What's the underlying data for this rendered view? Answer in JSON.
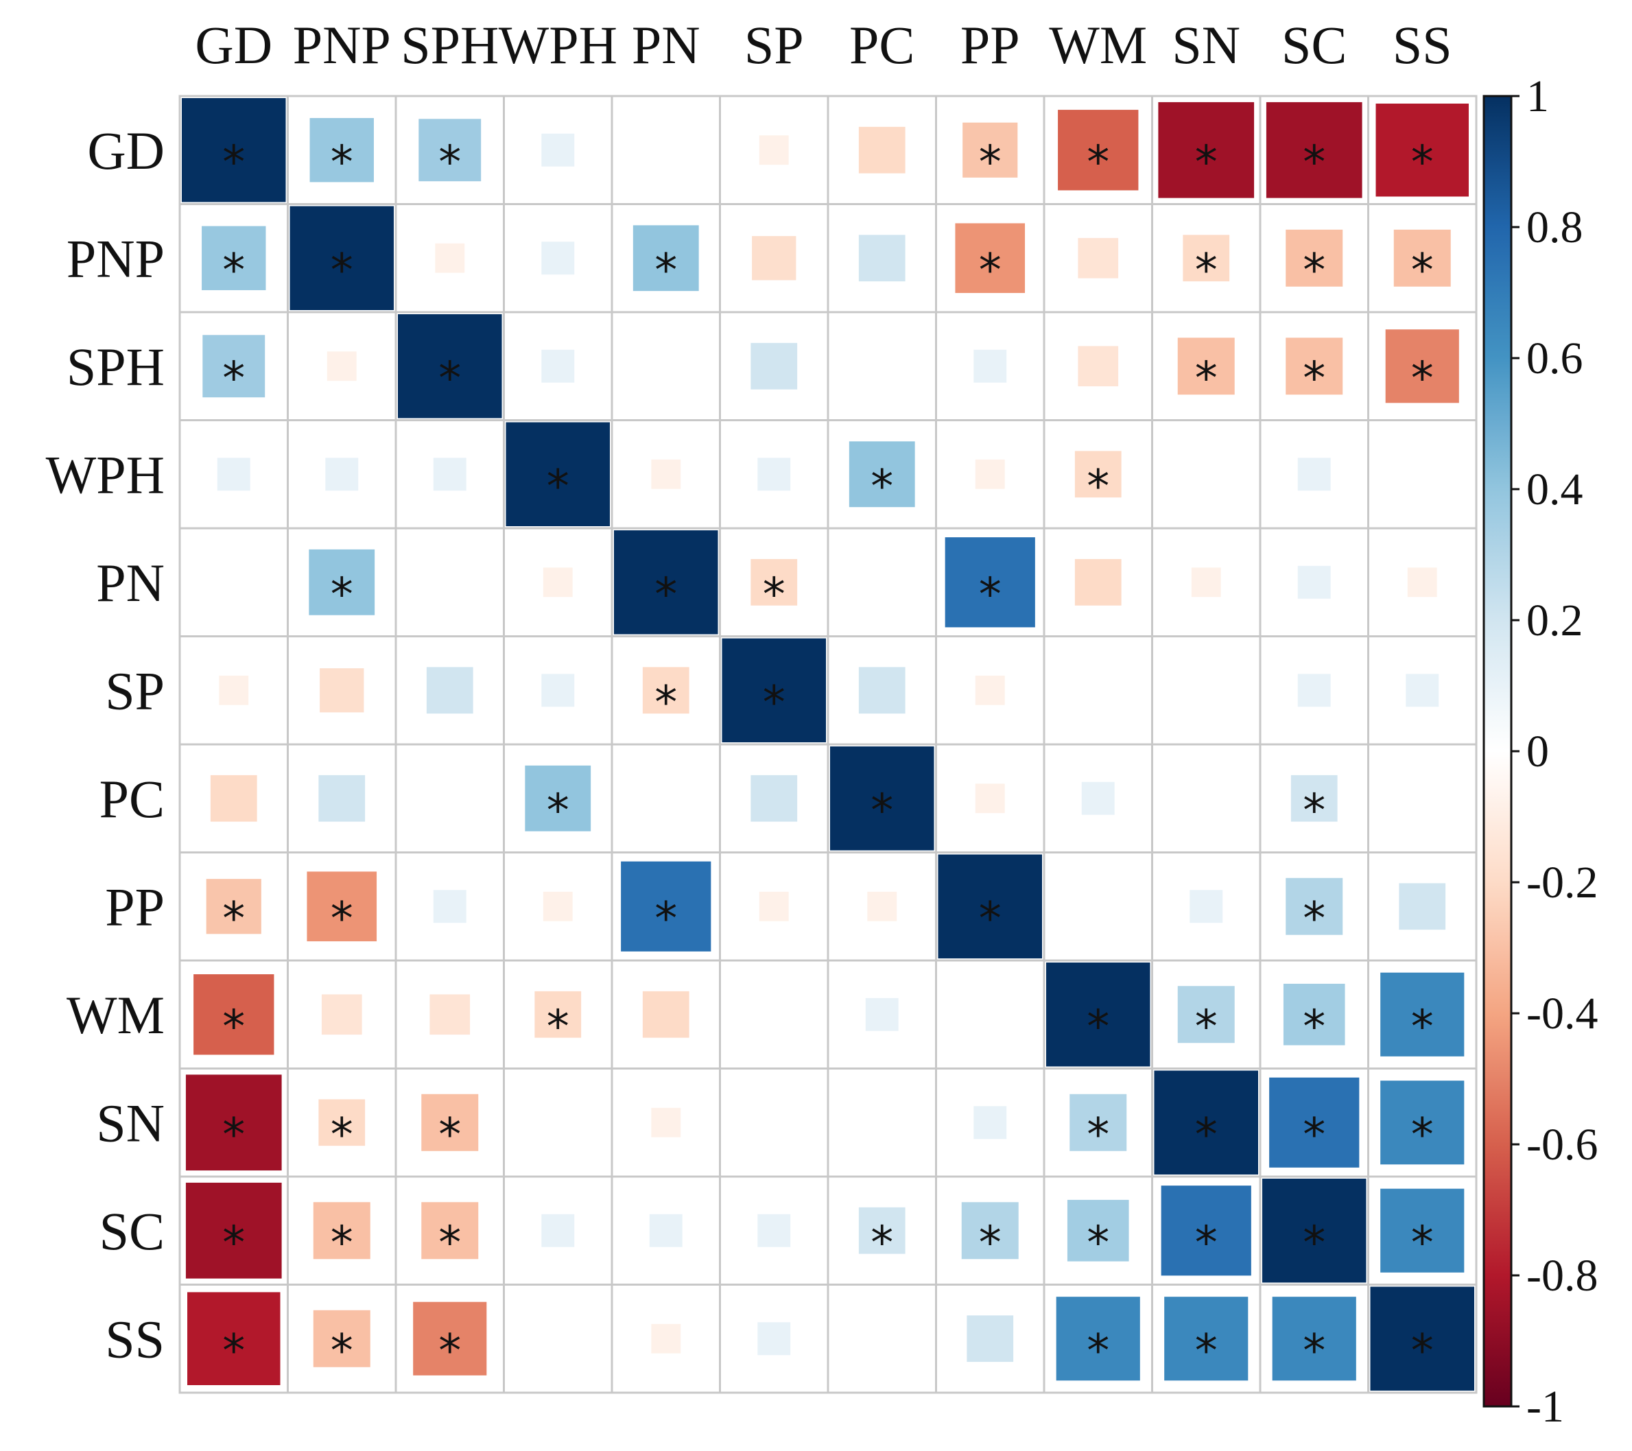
{
  "chart_data": {
    "type": "heatmap",
    "title": "",
    "variables": [
      "GD",
      "PNP",
      "SPH",
      "WPH",
      "PN",
      "SP",
      "PC",
      "PP",
      "WM",
      "SN",
      "SC",
      "SS"
    ],
    "matrix": [
      [
        1.0,
        0.38,
        0.36,
        0.1,
        0.0,
        -0.08,
        -0.2,
        -0.28,
        -0.6,
        -0.85,
        -0.85,
        -0.8
      ],
      [
        0.38,
        1.0,
        -0.08,
        0.1,
        0.4,
        -0.18,
        0.2,
        -0.45,
        -0.15,
        -0.2,
        -0.3,
        -0.3
      ],
      [
        0.36,
        -0.08,
        1.0,
        0.1,
        0.0,
        0.2,
        0.0,
        0.1,
        -0.15,
        -0.3,
        -0.3,
        -0.5
      ],
      [
        0.1,
        0.1,
        0.1,
        1.0,
        -0.08,
        0.1,
        0.4,
        -0.08,
        -0.2,
        0.0,
        0.1,
        0.0
      ],
      [
        0.0,
        0.4,
        0.0,
        -0.08,
        1.0,
        -0.2,
        0.0,
        0.75,
        -0.2,
        -0.08,
        0.1,
        -0.08
      ],
      [
        -0.08,
        -0.18,
        0.2,
        0.1,
        -0.2,
        1.0,
        0.2,
        -0.08,
        0.0,
        0.0,
        0.1,
        0.1
      ],
      [
        -0.2,
        0.2,
        0.0,
        0.4,
        0.0,
        0.2,
        1.0,
        -0.08,
        0.1,
        0.0,
        0.2,
        0.0
      ],
      [
        -0.28,
        -0.45,
        0.1,
        -0.08,
        0.75,
        -0.08,
        -0.08,
        1.0,
        0.0,
        0.1,
        0.3,
        0.2
      ],
      [
        -0.6,
        -0.15,
        -0.15,
        -0.2,
        -0.2,
        0.0,
        0.1,
        0.0,
        1.0,
        0.3,
        0.35,
        0.65
      ],
      [
        -0.85,
        -0.2,
        -0.3,
        0.0,
        -0.08,
        0.0,
        0.0,
        0.1,
        0.3,
        1.0,
        0.75,
        0.65
      ],
      [
        -0.85,
        -0.3,
        -0.3,
        0.1,
        0.1,
        0.1,
        0.2,
        0.3,
        0.35,
        0.75,
        1.0,
        0.65
      ],
      [
        -0.8,
        -0.3,
        -0.5,
        0.0,
        -0.08,
        0.1,
        0.0,
        0.2,
        0.65,
        0.65,
        0.65,
        1.0
      ]
    ],
    "significant": [
      [
        1,
        1,
        1,
        0,
        0,
        0,
        0,
        1,
        1,
        1,
        1,
        1
      ],
      [
        1,
        1,
        0,
        0,
        1,
        0,
        0,
        1,
        0,
        1,
        1,
        1
      ],
      [
        1,
        0,
        1,
        0,
        0,
        0,
        0,
        0,
        0,
        1,
        1,
        1
      ],
      [
        0,
        0,
        0,
        1,
        0,
        0,
        1,
        0,
        1,
        0,
        0,
        0
      ],
      [
        0,
        1,
        0,
        0,
        1,
        1,
        0,
        1,
        0,
        0,
        0,
        0
      ],
      [
        0,
        0,
        0,
        0,
        1,
        1,
        0,
        0,
        0,
        0,
        0,
        0
      ],
      [
        0,
        0,
        0,
        1,
        0,
        0,
        1,
        0,
        0,
        0,
        1,
        0
      ],
      [
        1,
        1,
        0,
        0,
        1,
        0,
        0,
        1,
        0,
        0,
        1,
        0
      ],
      [
        1,
        0,
        0,
        1,
        0,
        0,
        0,
        0,
        1,
        1,
        1,
        1
      ],
      [
        1,
        1,
        1,
        0,
        0,
        0,
        0,
        0,
        1,
        1,
        1,
        1
      ],
      [
        1,
        1,
        1,
        0,
        0,
        0,
        1,
        1,
        1,
        1,
        1,
        1
      ],
      [
        1,
        1,
        1,
        0,
        0,
        0,
        0,
        0,
        1,
        1,
        1,
        1
      ]
    ],
    "significance_marker": "*",
    "colorbar": {
      "range": [
        -1,
        1
      ],
      "ticks": [
        1,
        0.8,
        0.6,
        0.4,
        0.2,
        0,
        -0.2,
        -0.4,
        -0.6,
        -0.8,
        -1
      ],
      "tick_labels": [
        "1",
        "0.8",
        "0.6",
        "0.4",
        "0.2",
        "0",
        "-0.2",
        "-0.4",
        "-0.6",
        "-0.8",
        "-1"
      ],
      "placement": "right"
    },
    "colors": {
      "strong_positive": "#0b3768",
      "positive": "#3d85c0",
      "neutral": "#ffffff",
      "negative": "#e07a5a",
      "strong_negative": "#750b1a",
      "grid": "#c8c8c8"
    }
  }
}
